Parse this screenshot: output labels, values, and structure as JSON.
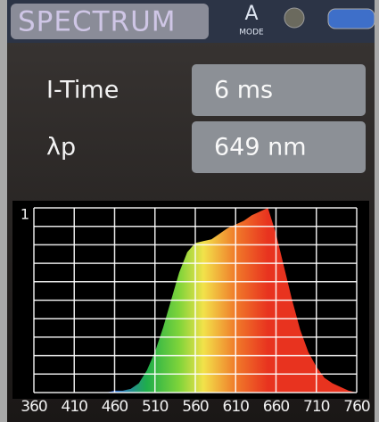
{
  "header": {
    "title": "SPECTRUM",
    "mode_icon": "A",
    "mode_label": "MODE"
  },
  "fields": [
    {
      "label": "I-Time",
      "value": "6 ms"
    },
    {
      "label": "λp",
      "value": "649 nm"
    }
  ],
  "chart_data": {
    "type": "area",
    "x": [
      360,
      370,
      380,
      390,
      400,
      410,
      420,
      430,
      440,
      450,
      460,
      470,
      480,
      490,
      500,
      510,
      520,
      530,
      540,
      550,
      560,
      570,
      580,
      590,
      600,
      610,
      620,
      630,
      640,
      650,
      660,
      670,
      680,
      690,
      700,
      710,
      720,
      730,
      740,
      750,
      760
    ],
    "values": [
      0,
      0,
      0,
      0,
      0,
      0,
      0,
      0,
      0,
      0,
      0.01,
      0.01,
      0.02,
      0.05,
      0.12,
      0.22,
      0.35,
      0.5,
      0.65,
      0.76,
      0.81,
      0.82,
      0.83,
      0.86,
      0.89,
      0.91,
      0.93,
      0.96,
      0.98,
      1.0,
      0.86,
      0.68,
      0.5,
      0.34,
      0.22,
      0.14,
      0.08,
      0.05,
      0.03,
      0.01,
      0
    ],
    "xlim": [
      360,
      760
    ],
    "xticks": [
      360,
      410,
      460,
      510,
      560,
      610,
      660,
      710,
      760
    ],
    "ylim": [
      0,
      1
    ],
    "yticks": [
      1
    ],
    "ygrid": [
      0,
      0.1,
      0.2,
      0.3,
      0.4,
      0.5,
      0.6,
      0.7,
      0.8,
      0.9,
      1
    ],
    "color_stops": [
      {
        "nm": 450,
        "color": "#2f5cff"
      },
      {
        "nm": 500,
        "color": "#1fae4a"
      },
      {
        "nm": 540,
        "color": "#7fd43a"
      },
      {
        "nm": 570,
        "color": "#f2e24a"
      },
      {
        "nm": 610,
        "color": "#f07a2a"
      },
      {
        "nm": 650,
        "color": "#e8331f"
      },
      {
        "nm": 760,
        "color": "#e8331f"
      }
    ]
  }
}
